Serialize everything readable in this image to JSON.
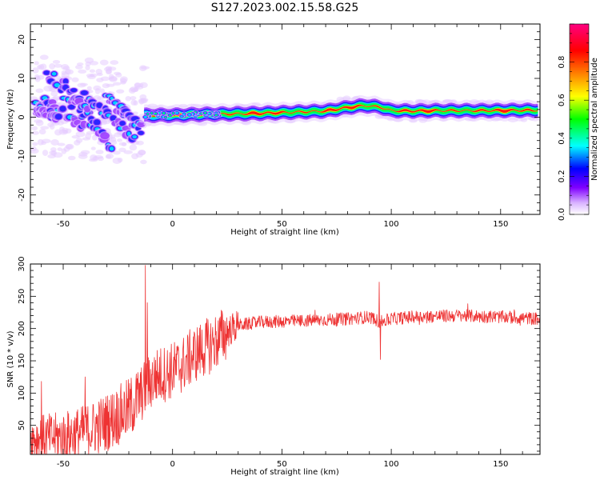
{
  "title": "S127.2023.002.15.58.G25",
  "chart_data": [
    {
      "type": "heatmap",
      "title": "S127.2023.002.15.58.G25",
      "xlabel": "Height of straight line (km)",
      "ylabel": "Frequency (Hz)",
      "xlim": [
        -65,
        168
      ],
      "ylim": [
        -25,
        24
      ],
      "xticks": [
        -50,
        0,
        50,
        100,
        150
      ],
      "yticks": [
        -20,
        -10,
        0,
        10,
        20
      ],
      "colorbar": {
        "label": "Normalized spectral amplitude",
        "range": [
          0.0,
          1.0
        ],
        "ticks": [
          "0.0",
          "0.2",
          "0.4",
          "0.6",
          "0.8"
        ],
        "tick_values": [
          0.0,
          0.2,
          0.4,
          0.6,
          0.8
        ],
        "colors": [
          "#ffffff",
          "#d9b3ff",
          "#8000ff",
          "#0000ff",
          "#00ffff",
          "#00ff00",
          "#ffff00",
          "#ff8000",
          "#ff0000",
          "#ff0080"
        ]
      },
      "ridge": {
        "x": [
          -12,
          0,
          10,
          20,
          40,
          60,
          70,
          80,
          88,
          95,
          100,
          110,
          120,
          140,
          168
        ],
        "freq": [
          0.5,
          0.5,
          0.7,
          0.8,
          1.0,
          1.4,
          1.6,
          2.5,
          3.0,
          2.6,
          1.7,
          1.6,
          1.7,
          1.7,
          1.8
        ]
      }
    },
    {
      "type": "line",
      "xlabel": "Height of straight line (km)",
      "ylabel": "SNR (10 * v/v)",
      "xlim": [
        -65,
        168
      ],
      "ylim": [
        5,
        300
      ],
      "xticks": [
        -50,
        0,
        50,
        100,
        150
      ],
      "yticks": [
        50,
        100,
        150,
        200,
        250,
        300
      ],
      "color": "#ee3333",
      "envelope": {
        "x": [
          -65,
          -50,
          -40,
          -30,
          -20,
          -15,
          -12,
          -8,
          0,
          5,
          10,
          15,
          20,
          25,
          30,
          40,
          60,
          80,
          90,
          95,
          100,
          110,
          130,
          150,
          168
        ],
        "mean": [
          30,
          32,
          40,
          55,
          75,
          95,
          110,
          125,
          135,
          145,
          160,
          170,
          180,
          195,
          205,
          210,
          212,
          215,
          218,
          210,
          215,
          218,
          220,
          218,
          215
        ]
      },
      "spikes": [
        {
          "x": -12.5,
          "y": 298
        },
        {
          "x": -11.5,
          "y": 240
        },
        {
          "x": 94.5,
          "y": 272
        },
        {
          "x": 95.0,
          "y": 152
        },
        {
          "x": -60,
          "y": 118
        },
        {
          "x": -40,
          "y": 125
        }
      ]
    }
  ]
}
